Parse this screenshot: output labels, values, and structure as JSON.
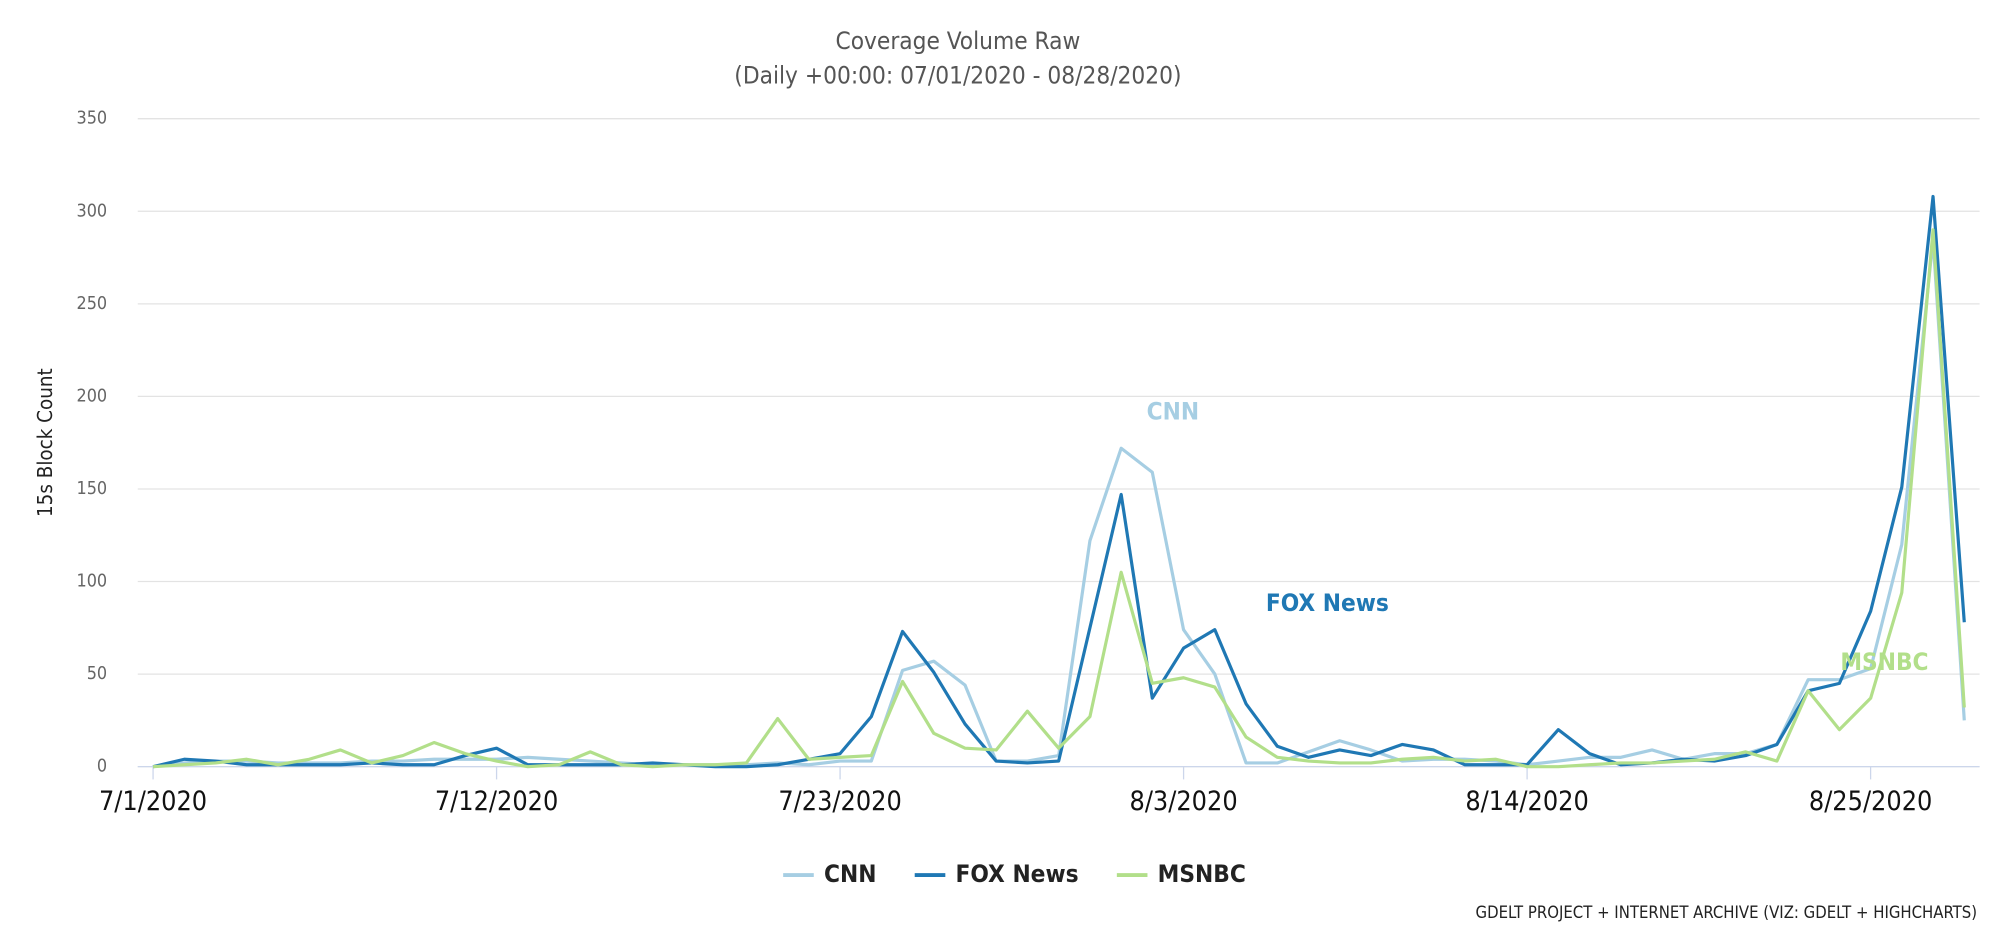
{
  "chart_data": {
    "type": "line",
    "title": "Coverage Volume Raw",
    "subtitle": "(Daily +00:00: 07/01/2020 - 08/28/2020)",
    "y_label": "15s Block Count",
    "credit": "GDELT PROJECT + INTERNET ARCHIVE (VIZ: GDELT + HIGHCHARTS)",
    "x": [
      "7/1/2020",
      "7/2/2020",
      "7/3/2020",
      "7/4/2020",
      "7/5/2020",
      "7/6/2020",
      "7/7/2020",
      "7/8/2020",
      "7/9/2020",
      "7/10/2020",
      "7/11/2020",
      "7/12/2020",
      "7/13/2020",
      "7/14/2020",
      "7/15/2020",
      "7/16/2020",
      "7/17/2020",
      "7/18/2020",
      "7/19/2020",
      "7/20/2020",
      "7/21/2020",
      "7/22/2020",
      "7/23/2020",
      "7/24/2020",
      "7/25/2020",
      "7/26/2020",
      "7/27/2020",
      "7/28/2020",
      "7/29/2020",
      "7/30/2020",
      "7/31/2020",
      "8/1/2020",
      "8/2/2020",
      "8/3/2020",
      "8/4/2020",
      "8/5/2020",
      "8/6/2020",
      "8/7/2020",
      "8/8/2020",
      "8/9/2020",
      "8/10/2020",
      "8/11/2020",
      "8/12/2020",
      "8/13/2020",
      "8/14/2020",
      "8/15/2020",
      "8/16/2020",
      "8/17/2020",
      "8/18/2020",
      "8/19/2020",
      "8/20/2020",
      "8/21/2020",
      "8/22/2020",
      "8/23/2020",
      "8/24/2020",
      "8/25/2020",
      "8/26/2020",
      "8/27/2020",
      "8/28/2020"
    ],
    "xticks": [
      "7/1/2020",
      "7/12/2020",
      "7/23/2020",
      "8/3/2020",
      "8/14/2020",
      "8/25/2020"
    ],
    "ylim": [
      0,
      350
    ],
    "yticks": [
      0,
      50,
      100,
      150,
      200,
      250,
      300,
      350
    ],
    "grid": true,
    "series": [
      {
        "name": "CNN",
        "color": "#a6cee3",
        "values": [
          0,
          2,
          3,
          3,
          2,
          2,
          2,
          3,
          3,
          4,
          4,
          4,
          5,
          4,
          3,
          2,
          1,
          1,
          1,
          1,
          2,
          1,
          3,
          3,
          52,
          57,
          44,
          3,
          3,
          6,
          122,
          172,
          159,
          74,
          50,
          2,
          2,
          8,
          14,
          9,
          3,
          4,
          4,
          3,
          1,
          3,
          5,
          5,
          9,
          4,
          7,
          7,
          12,
          47,
          47,
          53,
          120,
          285,
          25
        ]
      },
      {
        "name": "FOX News",
        "color": "#1f78b4",
        "values": [
          0,
          4,
          3,
          1,
          1,
          1,
          1,
          2,
          1,
          1,
          6,
          10,
          1,
          1,
          1,
          1,
          2,
          1,
          0,
          0,
          1,
          4,
          7,
          27,
          73,
          51,
          23,
          3,
          2,
          3,
          75,
          147,
          37,
          64,
          74,
          34,
          11,
          5,
          9,
          6,
          12,
          9,
          1,
          1,
          1,
          20,
          7,
          1,
          2,
          4,
          3,
          6,
          12,
          41,
          45,
          84,
          151,
          308,
          78
        ]
      },
      {
        "name": "MSNBC",
        "color": "#b2df8a",
        "values": [
          0,
          1,
          2,
          4,
          1,
          4,
          9,
          2,
          6,
          13,
          7,
          3,
          0,
          1,
          8,
          1,
          0,
          1,
          1,
          2,
          26,
          4,
          5,
          6,
          46,
          18,
          10,
          9,
          30,
          10,
          27,
          105,
          45,
          48,
          43,
          16,
          5,
          3,
          2,
          2,
          4,
          5,
          3,
          4,
          0,
          0,
          1,
          2,
          2,
          3,
          4,
          8,
          3,
          41,
          20,
          37,
          94,
          290,
          32
        ]
      }
    ],
    "annotations": [
      {
        "text": "CNN",
        "series": 0
      },
      {
        "text": "FOX News",
        "series": 1
      },
      {
        "text": "MSNBC",
        "series": 2
      }
    ]
  }
}
